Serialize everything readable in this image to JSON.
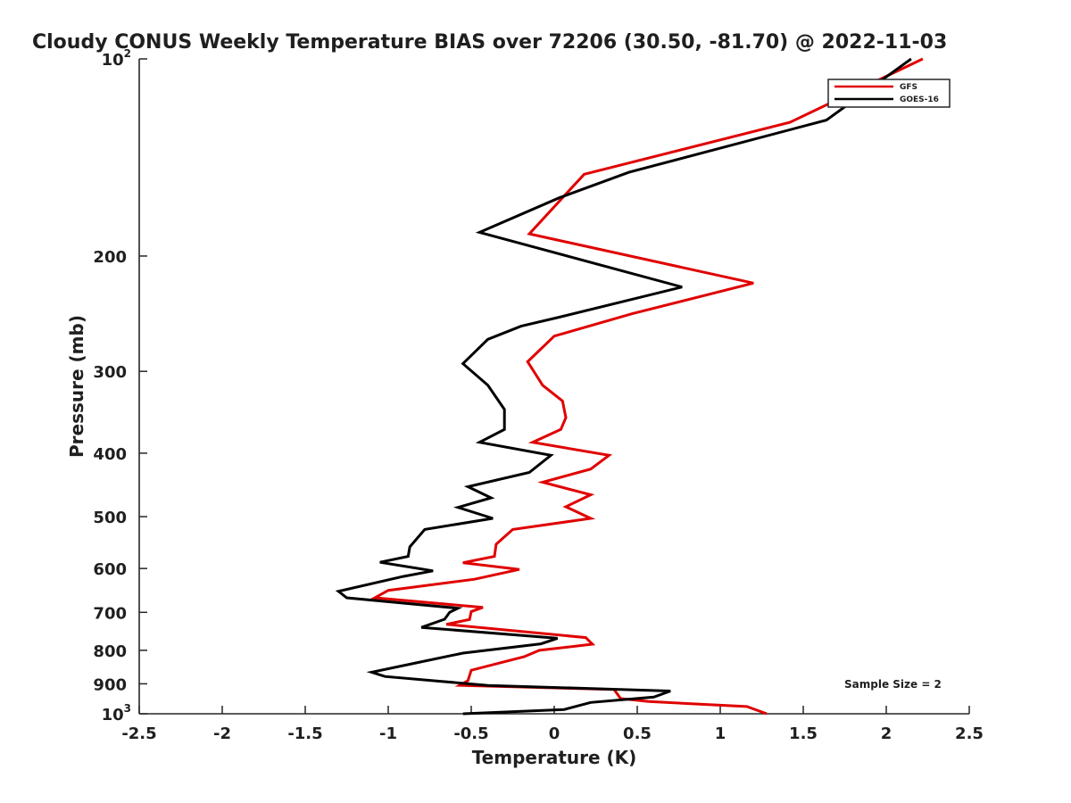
{
  "chart_data": {
    "type": "line",
    "title": "Cloudy CONUS Weekly Temperature BIAS over 72206 (30.50, -81.70) @ 2022-11-03",
    "xlabel": "Temperature (K)",
    "ylabel": "Pressure (mb)",
    "xlim": [
      -2.5,
      2.5
    ],
    "ylim": [
      100,
      1000
    ],
    "yscale": "log",
    "y_reversed": true,
    "grid": false,
    "legend_position": "top-right",
    "x_ticks": [
      {
        "value": -2.5,
        "label": "-2.5"
      },
      {
        "value": -2,
        "label": "-2"
      },
      {
        "value": -1.5,
        "label": "-1.5"
      },
      {
        "value": -1,
        "label": "-1"
      },
      {
        "value": -0.5,
        "label": "-0.5"
      },
      {
        "value": 0,
        "label": "0"
      },
      {
        "value": 0.5,
        "label": "0.5"
      },
      {
        "value": 1,
        "label": "1"
      },
      {
        "value": 1.5,
        "label": "1.5"
      },
      {
        "value": 2,
        "label": "2"
      },
      {
        "value": 2.5,
        "label": "2.5"
      }
    ],
    "y_ticks": [
      {
        "value": 100,
        "label": "10",
        "sup": "2"
      },
      {
        "value": 200,
        "label": "200"
      },
      {
        "value": 300,
        "label": "300"
      },
      {
        "value": 400,
        "label": "400"
      },
      {
        "value": 500,
        "label": "500"
      },
      {
        "value": 600,
        "label": "600"
      },
      {
        "value": 700,
        "label": "700"
      },
      {
        "value": 800,
        "label": "800"
      },
      {
        "value": 900,
        "label": "900"
      },
      {
        "value": 1000,
        "label": "10",
        "sup": "3"
      }
    ],
    "annotation": "Sample Size = 2",
    "series": [
      {
        "name": "GFS",
        "color": "#e00000",
        "points": [
          {
            "x": 2.22,
            "p": 100
          },
          {
            "x": 1.42,
            "p": 125
          },
          {
            "x": 0.18,
            "p": 150
          },
          {
            "x": -0.15,
            "p": 185
          },
          {
            "x": 1.2,
            "p": 220
          },
          {
            "x": 0.47,
            "p": 245
          },
          {
            "x": 0,
            "p": 265
          },
          {
            "x": -0.16,
            "p": 290
          },
          {
            "x": -0.07,
            "p": 315
          },
          {
            "x": 0.05,
            "p": 333
          },
          {
            "x": 0.07,
            "p": 353
          },
          {
            "x": 0.04,
            "p": 368
          },
          {
            "x": -0.13,
            "p": 385
          },
          {
            "x": 0.33,
            "p": 403
          },
          {
            "x": 0.22,
            "p": 423
          },
          {
            "x": -0.07,
            "p": 443
          },
          {
            "x": 0.22,
            "p": 463
          },
          {
            "x": 0.07,
            "p": 483
          },
          {
            "x": 0.22,
            "p": 503
          },
          {
            "x": -0.25,
            "p": 523
          },
          {
            "x": -0.35,
            "p": 551
          },
          {
            "x": -0.36,
            "p": 575
          },
          {
            "x": -0.55,
            "p": 588
          },
          {
            "x": -0.21,
            "p": 602
          },
          {
            "x": -0.48,
            "p": 623
          },
          {
            "x": -1,
            "p": 648
          },
          {
            "x": -1.08,
            "p": 665
          },
          {
            "x": -0.43,
            "p": 688
          },
          {
            "x": -0.5,
            "p": 698
          },
          {
            "x": -0.51,
            "p": 718
          },
          {
            "x": -0.65,
            "p": 730
          },
          {
            "x": 0.19,
            "p": 765
          },
          {
            "x": 0.23,
            "p": 783
          },
          {
            "x": -0.09,
            "p": 800
          },
          {
            "x": -0.18,
            "p": 818
          },
          {
            "x": -0.5,
            "p": 858
          },
          {
            "x": -0.52,
            "p": 890
          },
          {
            "x": -0.57,
            "p": 905
          },
          {
            "x": 0.36,
            "p": 918
          },
          {
            "x": 0.4,
            "p": 948
          },
          {
            "x": 0.57,
            "p": 958
          },
          {
            "x": 1.16,
            "p": 975
          },
          {
            "x": 1.28,
            "p": 1000
          }
        ]
      },
      {
        "name": "GOES-16",
        "color": "#000000",
        "points": [
          {
            "x": 2.15,
            "p": 100
          },
          {
            "x": 1.64,
            "p": 124
          },
          {
            "x": 0.45,
            "p": 149
          },
          {
            "x": 0.03,
            "p": 163
          },
          {
            "x": -0.45,
            "p": 184
          },
          {
            "x": 0.77,
            "p": 223
          },
          {
            "x": 0.03,
            "p": 248
          },
          {
            "x": -0.2,
            "p": 256
          },
          {
            "x": -0.4,
            "p": 268
          },
          {
            "x": -0.55,
            "p": 292
          },
          {
            "x": -0.4,
            "p": 315
          },
          {
            "x": -0.3,
            "p": 343
          },
          {
            "x": -0.3,
            "p": 368
          },
          {
            "x": -0.45,
            "p": 385
          },
          {
            "x": -0.02,
            "p": 403
          },
          {
            "x": -0.15,
            "p": 428
          },
          {
            "x": -0.52,
            "p": 450
          },
          {
            "x": -0.38,
            "p": 468
          },
          {
            "x": -0.58,
            "p": 484
          },
          {
            "x": -0.37,
            "p": 503
          },
          {
            "x": -0.78,
            "p": 523
          },
          {
            "x": -0.87,
            "p": 556
          },
          {
            "x": -0.88,
            "p": 575
          },
          {
            "x": -1.05,
            "p": 587
          },
          {
            "x": -0.73,
            "p": 605
          },
          {
            "x": -0.91,
            "p": 617
          },
          {
            "x": -1.3,
            "p": 650
          },
          {
            "x": -1.25,
            "p": 665
          },
          {
            "x": -0.58,
            "p": 690
          },
          {
            "x": -0.63,
            "p": 700
          },
          {
            "x": -0.66,
            "p": 717
          },
          {
            "x": -0.8,
            "p": 738
          },
          {
            "x": 0.02,
            "p": 767
          },
          {
            "x": -0.08,
            "p": 782
          },
          {
            "x": -0.55,
            "p": 808
          },
          {
            "x": -0.82,
            "p": 835
          },
          {
            "x": -1.1,
            "p": 864
          },
          {
            "x": -1.02,
            "p": 877
          },
          {
            "x": -0.4,
            "p": 905
          },
          {
            "x": 0.7,
            "p": 923
          },
          {
            "x": 0.6,
            "p": 943
          },
          {
            "x": 0.22,
            "p": 961
          },
          {
            "x": 0.06,
            "p": 985
          },
          {
            "x": -0.55,
            "p": 1000
          }
        ]
      }
    ]
  }
}
